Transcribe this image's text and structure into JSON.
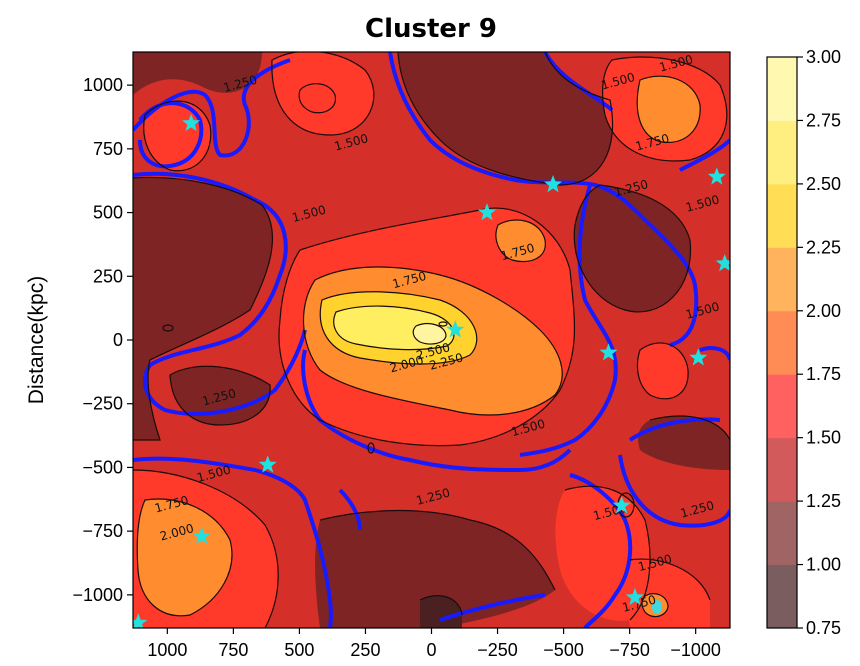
{
  "chart_data": {
    "type": "heatmap",
    "subtype": "filled-contour",
    "title": "Cluster 9",
    "xlabel": "",
    "ylabel": "Distance(kpc)",
    "xlim": [
      1130,
      -1130
    ],
    "ylim": [
      -1130,
      1130
    ],
    "x_ticks": [
      1000,
      750,
      500,
      250,
      0,
      -250,
      -500,
      -750,
      -1000
    ],
    "x_tick_labels": [
      "1000",
      "750",
      "500",
      "250",
      "0",
      "−250",
      "−500",
      "−750",
      "−1000"
    ],
    "y_ticks": [
      1000,
      750,
      500,
      250,
      0,
      -250,
      -500,
      -750,
      -1000
    ],
    "y_tick_labels": [
      "1000",
      "750",
      "500",
      "250",
      "0",
      "−250",
      "−500",
      "−750",
      "−1000"
    ],
    "colorbar": {
      "levels": [
        0.75,
        1.0,
        1.25,
        1.5,
        1.75,
        2.0,
        2.25,
        2.5,
        2.75,
        3.0
      ],
      "tick_labels": [
        "0.75",
        "1.00",
        "1.25",
        "1.50",
        "1.75",
        "2.00",
        "2.25",
        "2.50",
        "2.75",
        "3.00"
      ],
      "band_colors": [
        "#7a5d5e",
        "#a06464",
        "#d25a5a",
        "#ff6161",
        "#ff8c55",
        "#ffb35c",
        "#ffdd55",
        "#ffee80",
        "#fff8b0",
        "#fffde0"
      ]
    },
    "contour_labels": [
      {
        "text": "1.250",
        "x": 720,
        "y": 990
      },
      {
        "text": "1.500",
        "x": 300,
        "y": 760
      },
      {
        "text": "1.500",
        "x": 460,
        "y": 480
      },
      {
        "text": "1.750",
        "x": 80,
        "y": 220
      },
      {
        "text": "1.750",
        "x": -330,
        "y": 330
      },
      {
        "text": "2.500",
        "x": -10,
        "y": -60
      },
      {
        "text": "2.000",
        "x": 90,
        "y": -110
      },
      {
        "text": "2.250",
        "x": -60,
        "y": -100
      },
      {
        "text": "1.250",
        "x": 800,
        "y": -240
      },
      {
        "text": "1.500",
        "x": -370,
        "y": -360
      },
      {
        "text": "1.500",
        "x": 820,
        "y": -540
      },
      {
        "text": "1.750",
        "x": 980,
        "y": -660
      },
      {
        "text": "2.000",
        "x": 960,
        "y": -770
      },
      {
        "text": "1.250",
        "x": -10,
        "y": -630
      },
      {
        "text": "1.500",
        "x": -680,
        "y": -690
      },
      {
        "text": "1.500",
        "x": -850,
        "y": -890
      },
      {
        "text": "1.250",
        "x": -1010,
        "y": -680
      },
      {
        "text": "1.500",
        "x": -1030,
        "y": 100
      },
      {
        "text": "1.500",
        "x": -1030,
        "y": 520
      },
      {
        "text": "1.250",
        "x": -760,
        "y": 580
      },
      {
        "text": "1.750",
        "x": -840,
        "y": 760
      },
      {
        "text": "1.500",
        "x": -710,
        "y": 1000
      },
      {
        "text": "1.500",
        "x": -930,
        "y": 1070
      },
      {
        "text": "1.750",
        "x": -790,
        "y": -1050
      }
    ],
    "markers": {
      "symbol": "star",
      "color": "#20e0e0",
      "points": [
        {
          "x": 910,
          "y": 850
        },
        {
          "x": -210,
          "y": 500
        },
        {
          "x": -460,
          "y": 610
        },
        {
          "x": -1080,
          "y": 640
        },
        {
          "x": -1110,
          "y": 300
        },
        {
          "x": -90,
          "y": 40
        },
        {
          "x": -670,
          "y": -50
        },
        {
          "x": -1010,
          "y": -70
        },
        {
          "x": 620,
          "y": -490
        },
        {
          "x": 870,
          "y": -770
        },
        {
          "x": -720,
          "y": -650
        },
        {
          "x": -770,
          "y": -1010
        },
        {
          "x": 1110,
          "y": -1110
        }
      ]
    },
    "grid": false,
    "legend": "colorbar-right"
  }
}
